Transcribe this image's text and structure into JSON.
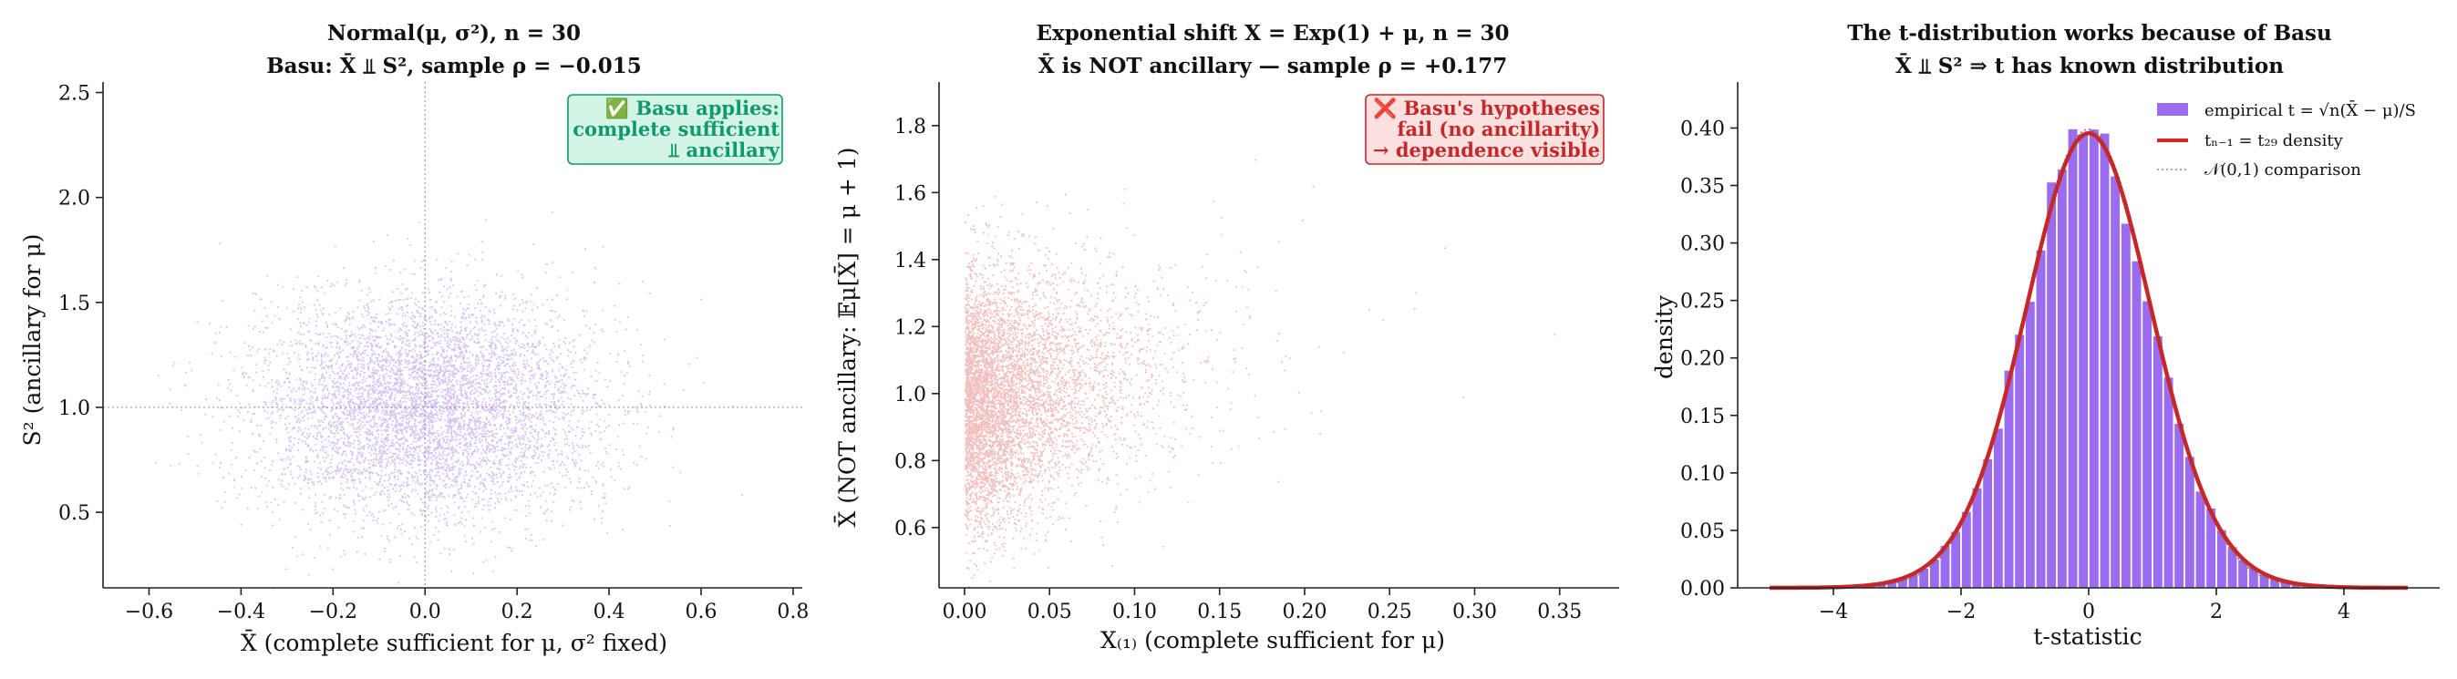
{
  "colors": {
    "purple": "#7b3fe4",
    "red": "#d62728",
    "green": "#0f9a6b",
    "green_bg": "#d4f5e6",
    "red_bg": "#fde1e1",
    "dark_red": "#c62828",
    "axis": "#222222"
  },
  "chart_data": [
    {
      "type": "scatter",
      "title": "Normal(μ, σ²), n = 30",
      "subtitle": "Basu: X̄ ⫫ S²,  sample ρ = −0.015",
      "xlabel": "X̄  (complete sufficient for μ, σ² fixed)",
      "ylabel": "S²  (ancillary for μ)",
      "xlim": [
        -0.7,
        0.82
      ],
      "ylim": [
        0.14,
        2.55
      ],
      "xticks": [
        -0.6,
        -0.4,
        -0.2,
        0.0,
        0.2,
        0.4,
        0.6,
        0.8
      ],
      "yticks": [
        0.5,
        1.0,
        1.5,
        2.0,
        2.5
      ],
      "reference_lines": {
        "x": 0.0,
        "y": 1.0
      },
      "annotation": [
        "✅ Basu applies:",
        "complete sufficient",
        "⫫ ancillary"
      ],
      "distribution": {
        "x_mean": 0.0,
        "x_sd": 0.183,
        "y_mean": 1.0,
        "y_sd": 0.26,
        "n": 6000
      }
    },
    {
      "type": "scatter",
      "title": "Exponential shift  X = Exp(1) + μ, n = 30",
      "subtitle": "X̄ is NOT ancillary — sample ρ = +0.177",
      "xlabel": "X₍₁₎  (complete sufficient for μ)",
      "ylabel": "X̄  (NOT ancillary: 𝔼μ[X̄] = μ + 1)",
      "xlim": [
        -0.015,
        0.385
      ],
      "ylim": [
        0.42,
        1.93
      ],
      "xticks": [
        0.0,
        0.05,
        0.1,
        0.15,
        0.2,
        0.25,
        0.3,
        0.35
      ],
      "yticks": [
        0.6,
        0.8,
        1.0,
        1.2,
        1.4,
        1.6,
        1.8
      ],
      "annotation": [
        "❌ Basu's hypotheses",
        "fail (no ancillarity)",
        "→ dependence visible"
      ],
      "distribution": {
        "x_rate": 30,
        "y_mean": 1.0,
        "y_sd": 0.18,
        "rho": 0.177,
        "n": 6000
      }
    },
    {
      "type": "bar",
      "title": "The t-distribution works because of Basu",
      "subtitle": "X̄ ⫫ S²  ⇒  t has known distribution",
      "xlabel": "t-statistic",
      "ylabel": "density",
      "xlim": [
        -5.5,
        5.5
      ],
      "ylim": [
        0.0,
        0.44
      ],
      "xticks": [
        -4,
        -2,
        0,
        2,
        4
      ],
      "yticks": [
        0.0,
        0.05,
        0.1,
        0.15,
        0.2,
        0.25,
        0.3,
        0.35,
        0.4
      ],
      "histogram": {
        "range": [
          -5,
          5
        ],
        "bins": 60,
        "df": 29
      },
      "curves": [
        {
          "name": "tₙ₋₁ = t₂₉ density",
          "df": 29
        },
        {
          "name": "𝒩(0,1) comparison"
        }
      ],
      "legend_placement": "top-right",
      "legend": [
        "empirical t = √n(X̄ − μ)/S",
        "tₙ₋₁ = t₂₉ density",
        "𝒩(0,1) comparison"
      ]
    }
  ]
}
